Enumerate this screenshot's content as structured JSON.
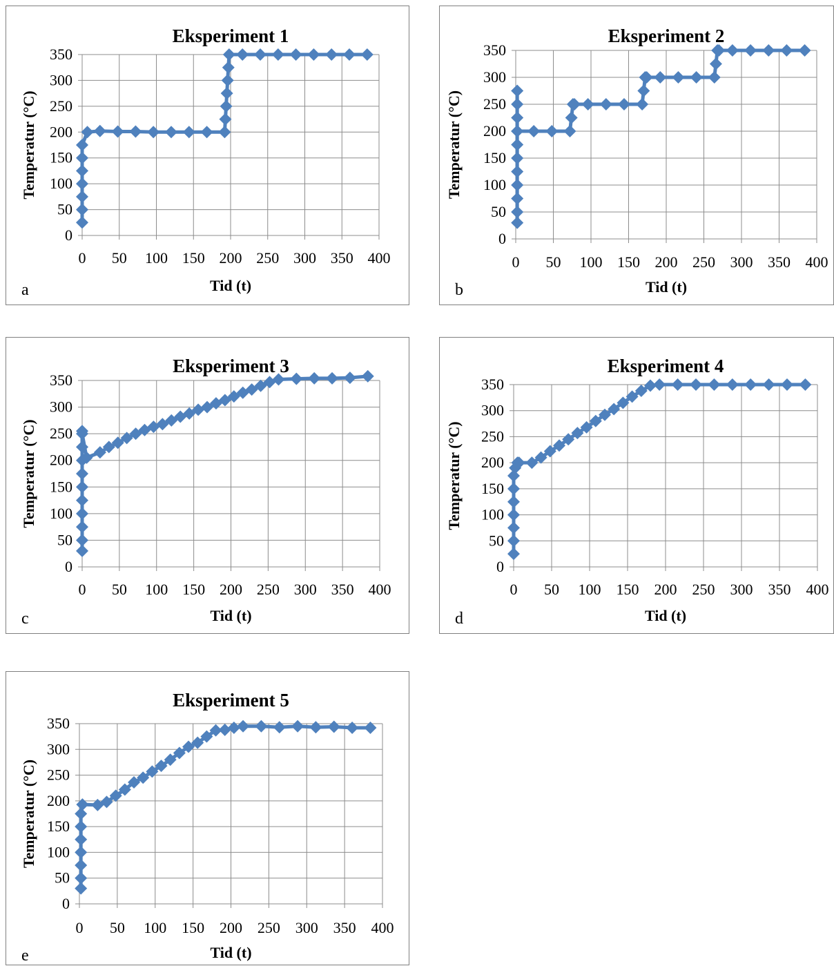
{
  "chart_data": [
    {
      "type": "line",
      "panel_label": "a",
      "title": "Eksperiment 1",
      "xlabel": "Tid (t)",
      "ylabel": "Temperatur (°C)",
      "xlim": [
        0,
        400
      ],
      "ylim": [
        0,
        350
      ],
      "xticks": [
        "0",
        "50",
        "100",
        "150",
        "200",
        "250",
        "300",
        "350",
        "400"
      ],
      "yticks": [
        "0",
        "50",
        "100",
        "150",
        "200",
        "250",
        "300",
        "350"
      ],
      "grid": true,
      "marker": "diamond",
      "color": "#4f81bd",
      "series": [
        {
          "x": [
            0,
            0,
            0,
            0,
            0,
            0,
            0,
            7,
            24,
            48,
            72,
            96,
            120,
            144,
            168,
            192,
            193,
            194,
            195,
            196,
            197,
            198,
            216,
            240,
            264,
            288,
            312,
            336,
            360,
            384
          ],
          "y": [
            25,
            50,
            75,
            100,
            125,
            150,
            175,
            200,
            202,
            201,
            201,
            200,
            200,
            200,
            200,
            200,
            225,
            250,
            275,
            300,
            325,
            350,
            350,
            350,
            350,
            350,
            350,
            350,
            350,
            350
          ]
        }
      ]
    },
    {
      "type": "line",
      "panel_label": "b",
      "title": "Eksperiment 2",
      "xlabel": "Tid (t)",
      "ylabel": "Temperatur (°C)",
      "xlim": [
        0,
        400
      ],
      "ylim": [
        0,
        350
      ],
      "xticks": [
        "0",
        "50",
        "100",
        "150",
        "200",
        "250",
        "300",
        "350",
        "400"
      ],
      "yticks": [
        "0",
        "50",
        "100",
        "150",
        "200",
        "250",
        "300",
        "350"
      ],
      "grid": true,
      "marker": "diamond",
      "color": "#4f81bd",
      "series": [
        {
          "x": [
            2,
            2,
            2,
            2,
            2,
            2,
            2,
            2,
            2,
            2,
            2,
            2,
            24,
            48,
            72,
            74,
            76,
            78,
            96,
            120,
            144,
            168,
            170,
            172,
            174,
            192,
            216,
            240,
            264,
            266,
            268,
            270,
            288,
            312,
            336,
            360,
            384
          ],
          "y": [
            30,
            50,
            75,
            100,
            125,
            150,
            175,
            200,
            225,
            250,
            275,
            200,
            200,
            200,
            200,
            225,
            250,
            250,
            250,
            250,
            250,
            250,
            275,
            300,
            300,
            300,
            300,
            300,
            300,
            325,
            350,
            350,
            350,
            350,
            350,
            350,
            350
          ]
        }
      ]
    },
    {
      "type": "line",
      "panel_label": "c",
      "title": "Eksperiment 3",
      "xlabel": "Tid (t)",
      "ylabel": "Temperatur (°C)",
      "xlim": [
        0,
        400
      ],
      "ylim": [
        0,
        350
      ],
      "xticks": [
        "0",
        "50",
        "100",
        "150",
        "200",
        "250",
        "300",
        "350",
        "400"
      ],
      "yticks": [
        "0",
        "50",
        "100",
        "150",
        "200",
        "250",
        "300",
        "350"
      ],
      "grid": true,
      "marker": "diamond",
      "color": "#4f81bd",
      "series": [
        {
          "x": [
            0,
            0,
            0,
            0,
            0,
            0,
            0,
            0,
            0,
            0,
            0,
            6,
            24,
            36,
            48,
            60,
            72,
            84,
            96,
            108,
            120,
            132,
            144,
            156,
            168,
            180,
            192,
            204,
            216,
            228,
            240,
            252,
            264,
            288,
            312,
            336,
            360,
            384
          ],
          "y": [
            30,
            50,
            75,
            100,
            125,
            150,
            175,
            200,
            225,
            255,
            250,
            205,
            215,
            225,
            233,
            242,
            250,
            257,
            263,
            268,
            275,
            282,
            288,
            295,
            300,
            307,
            313,
            320,
            327,
            333,
            340,
            347,
            352,
            353,
            354,
            354,
            355,
            358
          ]
        }
      ]
    },
    {
      "type": "line",
      "panel_label": "d",
      "title": "Eksperiment 4",
      "xlabel": "Tid (t)",
      "ylabel": "Temperatur (°C)",
      "xlim": [
        0,
        400
      ],
      "ylim": [
        0,
        350
      ],
      "xticks": [
        "0",
        "50",
        "100",
        "150",
        "200",
        "250",
        "300",
        "350",
        "400"
      ],
      "yticks": [
        "0",
        "50",
        "100",
        "150",
        "200",
        "250",
        "300",
        "350"
      ],
      "grid": true,
      "marker": "diamond",
      "color": "#4f81bd",
      "series": [
        {
          "x": [
            0,
            0,
            0,
            0,
            0,
            0,
            0,
            2,
            5,
            7,
            24,
            36,
            48,
            60,
            72,
            84,
            96,
            108,
            120,
            132,
            144,
            156,
            168,
            180,
            192,
            216,
            240,
            264,
            288,
            312,
            336,
            360,
            384
          ],
          "y": [
            25,
            50,
            75,
            100,
            125,
            150,
            175,
            190,
            200,
            200,
            200,
            210,
            222,
            233,
            245,
            257,
            268,
            280,
            292,
            303,
            315,
            327,
            338,
            348,
            350,
            350,
            350,
            350,
            350,
            350,
            350,
            350,
            350
          ]
        }
      ]
    },
    {
      "type": "line",
      "panel_label": "e",
      "title": "Eksperiment 5",
      "xlabel": "Tid (t)",
      "ylabel": "Temperatur (°C)",
      "xlim": [
        0,
        400
      ],
      "ylim": [
        0,
        350
      ],
      "xticks": [
        "0",
        "50",
        "100",
        "150",
        "200",
        "250",
        "300",
        "350",
        "400"
      ],
      "yticks": [
        "0",
        "50",
        "100",
        "150",
        "200",
        "250",
        "300",
        "350"
      ],
      "grid": true,
      "marker": "diamond",
      "color": "#4f81bd",
      "series": [
        {
          "x": [
            2,
            2,
            2,
            2,
            2,
            2,
            2,
            4,
            24,
            36,
            48,
            60,
            72,
            84,
            96,
            108,
            120,
            132,
            144,
            156,
            168,
            180,
            192,
            204,
            216,
            240,
            264,
            288,
            312,
            336,
            360,
            384
          ],
          "y": [
            30,
            50,
            75,
            100,
            125,
            150,
            175,
            193,
            192,
            198,
            210,
            222,
            236,
            245,
            257,
            268,
            280,
            293,
            305,
            313,
            325,
            337,
            338,
            342,
            345,
            345,
            343,
            345,
            343,
            344,
            342,
            342
          ]
        }
      ]
    }
  ]
}
